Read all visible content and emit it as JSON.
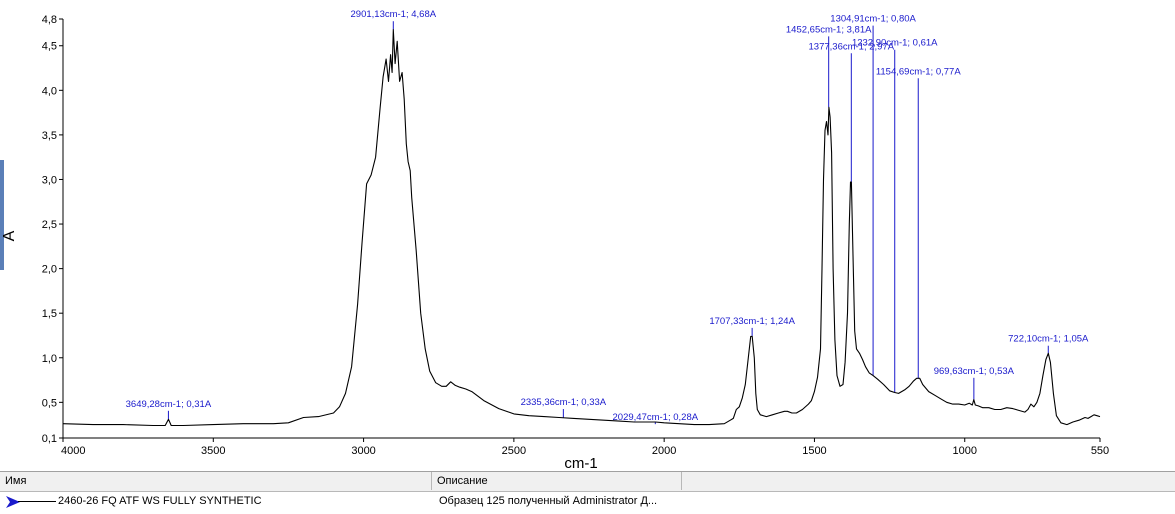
{
  "chart_data": {
    "type": "line",
    "xlabel": "cm-1",
    "ylabel": "A",
    "xlim": [
      4000,
      550
    ],
    "ylim": [
      0.1,
      4.8
    ],
    "x_ticks": [
      4000,
      3500,
      3000,
      2500,
      2000,
      1500,
      1000,
      550
    ],
    "y_ticks": [
      {
        "value": 0.1,
        "label": "0,1"
      },
      {
        "value": 0.5,
        "label": "0,5"
      },
      {
        "value": 1.0,
        "label": "1,0"
      },
      {
        "value": 1.5,
        "label": "1,5"
      },
      {
        "value": 2.0,
        "label": "2,0"
      },
      {
        "value": 2.5,
        "label": "2,5"
      },
      {
        "value": 3.0,
        "label": "3,0"
      },
      {
        "value": 3.5,
        "label": "3,5"
      },
      {
        "value": 4.0,
        "label": "4,0"
      },
      {
        "value": 4.5,
        "label": "4,5"
      },
      {
        "value": 4.8,
        "label": "4,8"
      }
    ],
    "grid": false,
    "series": [
      {
        "name": "2460-26 FQ ATF WS FULLY SYNTHETIC",
        "color": "#000000",
        "points": [
          [
            4000,
            0.26
          ],
          [
            3900,
            0.25
          ],
          [
            3800,
            0.25
          ],
          [
            3700,
            0.24
          ],
          [
            3660,
            0.24
          ],
          [
            3649,
            0.31
          ],
          [
            3640,
            0.24
          ],
          [
            3600,
            0.24
          ],
          [
            3500,
            0.25
          ],
          [
            3400,
            0.26
          ],
          [
            3300,
            0.26
          ],
          [
            3250,
            0.27
          ],
          [
            3200,
            0.33
          ],
          [
            3150,
            0.34
          ],
          [
            3100,
            0.38
          ],
          [
            3080,
            0.45
          ],
          [
            3060,
            0.6
          ],
          [
            3040,
            0.9
          ],
          [
            3020,
            1.6
          ],
          [
            3005,
            2.3
          ],
          [
            2990,
            2.95
          ],
          [
            2975,
            3.05
          ],
          [
            2960,
            3.25
          ],
          [
            2945,
            3.8
          ],
          [
            2935,
            4.15
          ],
          [
            2925,
            4.35
          ],
          [
            2917,
            4.1
          ],
          [
            2910,
            4.4
          ],
          [
            2905,
            4.2
          ],
          [
            2901,
            4.68
          ],
          [
            2895,
            4.3
          ],
          [
            2888,
            4.55
          ],
          [
            2880,
            4.1
          ],
          [
            2872,
            4.2
          ],
          [
            2865,
            3.9
          ],
          [
            2858,
            3.4
          ],
          [
            2852,
            3.2
          ],
          [
            2845,
            3.1
          ],
          [
            2840,
            2.8
          ],
          [
            2825,
            2.2
          ],
          [
            2810,
            1.5
          ],
          [
            2795,
            1.1
          ],
          [
            2780,
            0.85
          ],
          [
            2760,
            0.72
          ],
          [
            2740,
            0.68
          ],
          [
            2725,
            0.68
          ],
          [
            2710,
            0.73
          ],
          [
            2695,
            0.69
          ],
          [
            2680,
            0.67
          ],
          [
            2660,
            0.65
          ],
          [
            2640,
            0.62
          ],
          [
            2620,
            0.57
          ],
          [
            2600,
            0.52
          ],
          [
            2550,
            0.43
          ],
          [
            2500,
            0.37
          ],
          [
            2450,
            0.35
          ],
          [
            2400,
            0.34
          ],
          [
            2350,
            0.33
          ],
          [
            2300,
            0.32
          ],
          [
            2250,
            0.31
          ],
          [
            2200,
            0.3
          ],
          [
            2150,
            0.29
          ],
          [
            2100,
            0.28
          ],
          [
            2029,
            0.28
          ],
          [
            2000,
            0.27
          ],
          [
            1950,
            0.26
          ],
          [
            1900,
            0.25
          ],
          [
            1850,
            0.25
          ],
          [
            1800,
            0.26
          ],
          [
            1780,
            0.3
          ],
          [
            1770,
            0.32
          ],
          [
            1760,
            0.42
          ],
          [
            1750,
            0.45
          ],
          [
            1740,
            0.55
          ],
          [
            1730,
            0.7
          ],
          [
            1720,
            1.0
          ],
          [
            1712,
            1.24
          ],
          [
            1707,
            1.24
          ],
          [
            1700,
            1.0
          ],
          [
            1695,
            0.6
          ],
          [
            1690,
            0.42
          ],
          [
            1680,
            0.36
          ],
          [
            1660,
            0.34
          ],
          [
            1640,
            0.36
          ],
          [
            1620,
            0.38
          ],
          [
            1600,
            0.4
          ],
          [
            1590,
            0.4
          ],
          [
            1575,
            0.38
          ],
          [
            1560,
            0.38
          ],
          [
            1540,
            0.42
          ],
          [
            1520,
            0.48
          ],
          [
            1510,
            0.52
          ],
          [
            1500,
            0.62
          ],
          [
            1490,
            0.78
          ],
          [
            1480,
            1.1
          ],
          [
            1475,
            2.0
          ],
          [
            1470,
            3.0
          ],
          [
            1465,
            3.55
          ],
          [
            1460,
            3.65
          ],
          [
            1455,
            3.5
          ],
          [
            1452,
            3.81
          ],
          [
            1448,
            3.7
          ],
          [
            1443,
            3.3
          ],
          [
            1438,
            2.0
          ],
          [
            1432,
            1.2
          ],
          [
            1425,
            0.8
          ],
          [
            1415,
            0.68
          ],
          [
            1405,
            0.7
          ],
          [
            1398,
            0.95
          ],
          [
            1390,
            1.5
          ],
          [
            1384,
            2.5
          ],
          [
            1380,
            2.97
          ],
          [
            1377,
            2.97
          ],
          [
            1372,
            2.2
          ],
          [
            1366,
            1.3
          ],
          [
            1360,
            1.1
          ],
          [
            1350,
            1.05
          ],
          [
            1340,
            0.98
          ],
          [
            1330,
            0.9
          ],
          [
            1318,
            0.83
          ],
          [
            1305,
            0.8
          ],
          [
            1290,
            0.76
          ],
          [
            1270,
            0.7
          ],
          [
            1250,
            0.63
          ],
          [
            1233,
            0.61
          ],
          [
            1220,
            0.6
          ],
          [
            1200,
            0.64
          ],
          [
            1185,
            0.68
          ],
          [
            1170,
            0.74
          ],
          [
            1160,
            0.77
          ],
          [
            1150,
            0.77
          ],
          [
            1140,
            0.7
          ],
          [
            1120,
            0.62
          ],
          [
            1100,
            0.58
          ],
          [
            1080,
            0.54
          ],
          [
            1060,
            0.5
          ],
          [
            1040,
            0.48
          ],
          [
            1020,
            0.48
          ],
          [
            1000,
            0.47
          ],
          [
            985,
            0.49
          ],
          [
            975,
            0.47
          ],
          [
            970,
            0.53
          ],
          [
            965,
            0.47
          ],
          [
            955,
            0.46
          ],
          [
            940,
            0.44
          ],
          [
            920,
            0.44
          ],
          [
            900,
            0.42
          ],
          [
            880,
            0.42
          ],
          [
            860,
            0.44
          ],
          [
            840,
            0.43
          ],
          [
            820,
            0.41
          ],
          [
            800,
            0.39
          ],
          [
            790,
            0.42
          ],
          [
            780,
            0.48
          ],
          [
            770,
            0.45
          ],
          [
            760,
            0.5
          ],
          [
            750,
            0.6
          ],
          [
            740,
            0.8
          ],
          [
            730,
            0.98
          ],
          [
            722,
            1.05
          ],
          [
            715,
            0.95
          ],
          [
            705,
            0.6
          ],
          [
            695,
            0.35
          ],
          [
            680,
            0.27
          ],
          [
            660,
            0.25
          ],
          [
            640,
            0.28
          ],
          [
            620,
            0.3
          ],
          [
            600,
            0.33
          ],
          [
            590,
            0.32
          ],
          [
            580,
            0.34
          ],
          [
            570,
            0.36
          ],
          [
            560,
            0.35
          ],
          [
            550,
            0.34
          ]
        ]
      }
    ],
    "annotations": [
      {
        "x": 3649.28,
        "y": 0.31,
        "text": "3649,28cm-1; 0,31A",
        "label_x": 3649.28,
        "label_y": 0.45
      },
      {
        "x": 2901.13,
        "y": 4.68,
        "text": "2901,13cm-1; 4,68A",
        "label_x": 2901.13,
        "label_y": 4.82
      },
      {
        "x": 2335.36,
        "y": 0.33,
        "text": "2335,36cm-1; 0,33A",
        "label_x": 2335.36,
        "label_y": 0.47
      },
      {
        "x": 2029.47,
        "y": 0.28,
        "text": "2029,47cm-1; 0,28A",
        "label_x": 2029.47,
        "label_y": 0.3
      },
      {
        "x": 1707.33,
        "y": 1.24,
        "text": "1707,33cm-1; 1,24A",
        "label_x": 1707.33,
        "label_y": 1.38
      },
      {
        "x": 1452.65,
        "y": 3.81,
        "text": "1452,65cm-1; 3,81A",
        "label_x": 1452.65,
        "label_y": 4.65
      },
      {
        "x": 1377.36,
        "y": 2.97,
        "text": "1377,36cm-1; 2,97A",
        "label_x": 1377.36,
        "label_y": 4.46
      },
      {
        "x": 1304.91,
        "y": 0.8,
        "text": "1304,91cm-1; 0,80A",
        "label_x": 1304.91,
        "label_y": 4.77
      },
      {
        "x": 1232.9,
        "y": 0.61,
        "text": "1232,90cm-1; 0,61A",
        "label_x": 1232.9,
        "label_y": 4.5
      },
      {
        "x": 1154.69,
        "y": 0.77,
        "text": "1154,69cm-1; 0,77A",
        "label_x": 1154.69,
        "label_y": 4.18
      },
      {
        "x": 969.63,
        "y": 0.53,
        "text": "969,63cm-1; 0,53A",
        "label_x": 969.63,
        "label_y": 0.82
      },
      {
        "x": 722.1,
        "y": 1.05,
        "text": "722,10cm-1; 1,05A",
        "label_x": 722.1,
        "label_y": 1.18
      }
    ]
  },
  "legend_table": {
    "headers": [
      "Имя",
      "Описание"
    ],
    "rows": [
      {
        "name": "2460-26 FQ ATF WS FULLY SYNTHETIC",
        "description": "Образец 125 полученный Administrator Д..."
      }
    ]
  },
  "colors": {
    "annotation": "#1a1acc",
    "line": "#000000",
    "marker": "#1a1acc"
  }
}
